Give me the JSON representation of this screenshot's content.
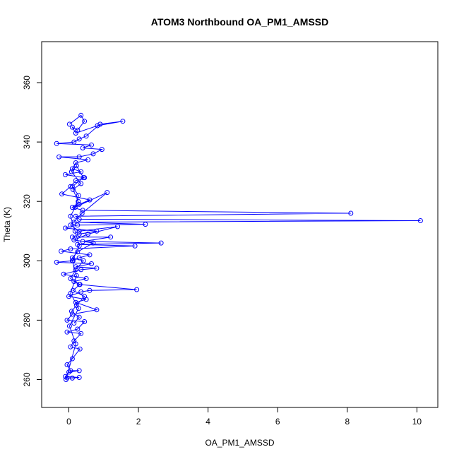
{
  "chart_data": {
    "type": "scatter",
    "title": "ATOM3 Northbound OA_PM1_AMSSD",
    "xlabel": "OA_PM1_AMSSD",
    "ylabel": "Theta (K)",
    "xlim": [
      -0.78,
      10.6
    ],
    "ylim": [
      250.6,
      373.8
    ],
    "xticks": [
      0,
      2,
      4,
      6,
      8,
      10
    ],
    "yticks": [
      260,
      280,
      300,
      320,
      340,
      360
    ],
    "grid": false,
    "legend": "none",
    "series_color": "#0000ff",
    "marker": "open-circle",
    "connected": true,
    "points": [
      [
        0.02,
        346
      ],
      [
        0.35,
        349
      ],
      [
        0.45,
        347
      ],
      [
        0.25,
        344
      ],
      [
        0.1,
        345
      ],
      [
        0.2,
        343
      ],
      [
        0.82,
        345.5
      ],
      [
        1.55,
        347
      ],
      [
        0.9,
        346
      ],
      [
        0.5,
        342
      ],
      [
        0.3,
        341
      ],
      [
        0.15,
        340
      ],
      [
        -0.35,
        339.5
      ],
      [
        0.65,
        339
      ],
      [
        0.4,
        338
      ],
      [
        0.95,
        337.5
      ],
      [
        0.7,
        336
      ],
      [
        0.3,
        335
      ],
      [
        -0.28,
        335
      ],
      [
        0.55,
        334
      ],
      [
        0.2,
        333
      ],
      [
        0.1,
        331
      ],
      [
        0.35,
        330
      ],
      [
        -0.1,
        329
      ],
      [
        0.45,
        328
      ],
      [
        0.2,
        327
      ],
      [
        0.05,
        325
      ],
      [
        -0.2,
        322.5
      ],
      [
        0.6,
        320.5
      ],
      [
        0.3,
        319
      ],
      [
        0.1,
        318
      ],
      [
        0.4,
        317
      ],
      [
        8.1,
        316
      ],
      [
        0.2,
        315
      ],
      [
        0.3,
        314
      ],
      [
        10.1,
        313.5
      ],
      [
        0.15,
        313
      ],
      [
        2.2,
        312.3
      ],
      [
        0.25,
        312
      ],
      [
        -0.1,
        311
      ],
      [
        0.8,
        310
      ],
      [
        0.3,
        309
      ],
      [
        0.1,
        308
      ],
      [
        1.2,
        308
      ],
      [
        0.4,
        306.5
      ],
      [
        2.65,
        306
      ],
      [
        0.25,
        305.5
      ],
      [
        1.9,
        305
      ],
      [
        0.05,
        304
      ],
      [
        -0.22,
        303.2
      ],
      [
        0.6,
        302
      ],
      [
        0.3,
        301
      ],
      [
        0.12,
        300
      ],
      [
        -0.35,
        299.5
      ],
      [
        0.65,
        299
      ],
      [
        0.2,
        298
      ],
      [
        0.8,
        297.5
      ],
      [
        0.35,
        297
      ],
      [
        -0.15,
        295.5
      ],
      [
        0.5,
        294
      ],
      [
        0.15,
        293
      ],
      [
        0.3,
        292
      ],
      [
        1.95,
        290.3
      ],
      [
        0.6,
        290
      ],
      [
        0.35,
        289.5
      ],
      [
        0.0,
        288
      ],
      [
        0.5,
        287
      ],
      [
        0.2,
        286
      ],
      [
        0.8,
        283.5
      ],
      [
        0.1,
        282
      ],
      [
        -0.05,
        280
      ],
      [
        0.45,
        279.5
      ],
      [
        0.25,
        277
      ],
      [
        -0.05,
        276
      ],
      [
        0.35,
        275.5
      ],
      [
        0.15,
        273
      ],
      [
        0.05,
        271
      ],
      [
        0.32,
        270.3
      ],
      [
        0.1,
        267
      ],
      [
        -0.05,
        265
      ],
      [
        0.05,
        263
      ],
      [
        0.3,
        263
      ],
      [
        0.0,
        262.5
      ],
      [
        -0.1,
        261
      ],
      [
        0.3,
        260.7
      ],
      [
        0.1,
        260.5
      ],
      [
        -0.05,
        260.6
      ],
      [
        -0.08,
        260
      ],
      [
        0.2,
        272
      ],
      [
        0.02,
        278
      ],
      [
        0.28,
        284
      ],
      [
        0.05,
        289
      ],
      [
        0.22,
        295
      ],
      [
        0.1,
        300
      ],
      [
        0.3,
        305
      ],
      [
        0.18,
        310
      ],
      [
        0.05,
        315
      ],
      [
        0.27,
        320
      ],
      [
        0.12,
        324
      ],
      [
        0.35,
        326
      ],
      [
        0.08,
        330
      ],
      [
        0.22,
        332
      ],
      [
        0.42,
        328
      ],
      [
        0.1,
        325
      ],
      [
        0.28,
        322
      ],
      [
        0.18,
        318
      ],
      [
        1.1,
        323
      ],
      [
        0.38,
        316
      ],
      [
        0.05,
        312
      ],
      [
        0.3,
        310
      ],
      [
        1.4,
        311.5
      ],
      [
        0.55,
        309
      ],
      [
        0.15,
        307
      ],
      [
        0.7,
        306
      ],
      [
        0.25,
        303
      ],
      [
        0.1,
        301
      ],
      [
        0.42,
        300
      ],
      [
        0.2,
        297
      ],
      [
        0.05,
        294
      ],
      [
        0.32,
        292
      ],
      [
        0.12,
        290
      ],
      [
        0.45,
        288
      ],
      [
        0.22,
        285
      ],
      [
        0.08,
        283
      ],
      [
        0.3,
        281
      ],
      [
        0.15,
        279
      ]
    ]
  }
}
